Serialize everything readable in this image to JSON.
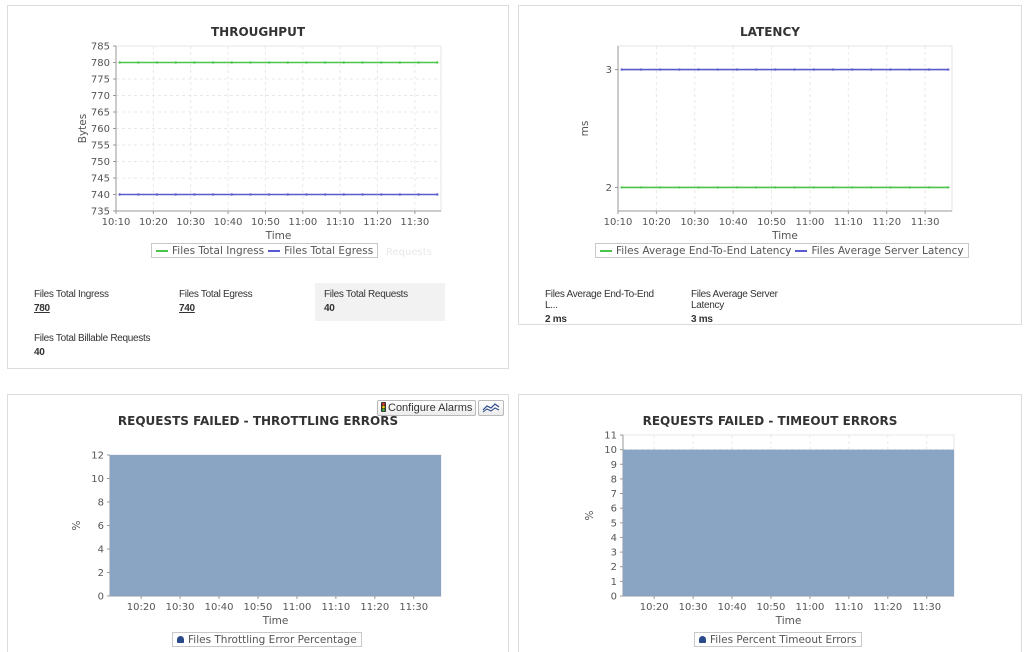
{
  "throughput": {
    "title": "THROUGHPUT",
    "metrics": [
      {
        "label": "Files Total Ingress",
        "value": "780"
      },
      {
        "label": "Files Total Egress",
        "value": "740"
      },
      {
        "label": "Files Total Requests",
        "value": "40"
      },
      {
        "label": "Files Total Billable Requests",
        "value": "40"
      }
    ],
    "ghost_text": "Requests"
  },
  "latency": {
    "title": "LATENCY",
    "metrics": [
      {
        "label": "Files Average End-To-End L...",
        "value": "2 ms"
      },
      {
        "label": "Files Average Server Latency",
        "value": "3 ms"
      }
    ]
  },
  "throttling": {
    "title": "REQUESTS FAILED - THROTTLING ERRORS",
    "configure_alarms_label": "Configure Alarms",
    "chart_toggle_icon": "chart-type-icon",
    "alarm_icon": "traffic-light-icon"
  },
  "timeout": {
    "title": "REQUESTS FAILED - TIMEOUT ERRORS"
  },
  "chart_data": [
    {
      "id": "throughput",
      "type": "line",
      "title": "THROUGHPUT",
      "xlabel": "Time",
      "ylabel": "Bytes",
      "xlim": [
        "10:10",
        "11:37"
      ],
      "ylim": [
        735,
        785
      ],
      "yticks": [
        735,
        740,
        745,
        750,
        755,
        760,
        765,
        770,
        775,
        780,
        785
      ],
      "xticks": [
        "10:10",
        "10:20",
        "10:30",
        "10:40",
        "10:50",
        "11:00",
        "11:10",
        "11:20",
        "11:30"
      ],
      "grid": true,
      "legend": "bottom",
      "series": [
        {
          "name": "Files Total Ingress",
          "color": "#4cc44c",
          "x": [
            "10:11",
            "10:16",
            "10:21",
            "10:26",
            "10:31",
            "10:36",
            "10:41",
            "10:46",
            "10:51",
            "10:56",
            "11:01",
            "11:06",
            "11:11",
            "11:16",
            "11:21",
            "11:26",
            "11:31",
            "11:36"
          ],
          "values": [
            780,
            780,
            780,
            780,
            780,
            780,
            780,
            780,
            780,
            780,
            780,
            780,
            780,
            780,
            780,
            780,
            780,
            780
          ]
        },
        {
          "name": "Files Total Egress",
          "color": "#5a5ad0",
          "x": [
            "10:11",
            "10:16",
            "10:21",
            "10:26",
            "10:31",
            "10:36",
            "10:41",
            "10:46",
            "10:51",
            "10:56",
            "11:01",
            "11:06",
            "11:11",
            "11:16",
            "11:21",
            "11:26",
            "11:31",
            "11:36"
          ],
          "values": [
            740,
            740,
            740,
            740,
            740,
            740,
            740,
            740,
            740,
            740,
            740,
            740,
            740,
            740,
            740,
            740,
            740,
            740
          ]
        }
      ]
    },
    {
      "id": "latency",
      "type": "line",
      "title": "LATENCY",
      "xlabel": "Time",
      "ylabel": "ms",
      "xlim": [
        "10:10",
        "11:37"
      ],
      "ylim": [
        1.8,
        3.2
      ],
      "yticks": [
        2,
        3
      ],
      "xticks": [
        "10:10",
        "10:20",
        "10:30",
        "10:40",
        "10:50",
        "11:00",
        "11:10",
        "11:20",
        "11:30"
      ],
      "grid": true,
      "legend": "bottom",
      "series": [
        {
          "name": "Files Average End-To-End Latency",
          "color": "#4cc44c",
          "x": [
            "10:11",
            "10:16",
            "10:21",
            "10:26",
            "10:31",
            "10:36",
            "10:41",
            "10:46",
            "10:51",
            "10:56",
            "11:01",
            "11:06",
            "11:11",
            "11:16",
            "11:21",
            "11:26",
            "11:31",
            "11:36"
          ],
          "values": [
            2,
            2,
            2,
            2,
            2,
            2,
            2,
            2,
            2,
            2,
            2,
            2,
            2,
            2,
            2,
            2,
            2,
            2
          ]
        },
        {
          "name": "Files Average Server Latency",
          "color": "#5a5ad0",
          "x": [
            "10:11",
            "10:16",
            "10:21",
            "10:26",
            "10:31",
            "10:36",
            "10:41",
            "10:46",
            "10:51",
            "10:56",
            "11:01",
            "11:06",
            "11:11",
            "11:16",
            "11:21",
            "11:26",
            "11:31",
            "11:36"
          ],
          "values": [
            3,
            3,
            3,
            3,
            3,
            3,
            3,
            3,
            3,
            3,
            3,
            3,
            3,
            3,
            3,
            3,
            3,
            3
          ]
        }
      ]
    },
    {
      "id": "throttling",
      "type": "area",
      "title": "REQUESTS FAILED - THROTTLING ERRORS",
      "xlabel": "Time",
      "ylabel": "%",
      "xlim": [
        "10:12",
        "11:37"
      ],
      "ylim": [
        0,
        12
      ],
      "yticks": [
        0,
        2,
        4,
        6,
        8,
        10,
        12
      ],
      "xticks": [
        "10:20",
        "10:30",
        "10:40",
        "10:50",
        "11:00",
        "11:10",
        "11:20",
        "11:30"
      ],
      "grid": false,
      "legend": "bottom",
      "series": [
        {
          "name": "Files Throttling Error Percentage",
          "color": "#8aa4c4",
          "x": [
            "10:12",
            "11:37"
          ],
          "values": [
            12,
            12
          ]
        }
      ]
    },
    {
      "id": "timeout",
      "type": "area",
      "title": "REQUESTS FAILED - TIMEOUT ERRORS",
      "xlabel": "Time",
      "ylabel": "%",
      "xlim": [
        "10:12",
        "11:37"
      ],
      "ylim": [
        0,
        11
      ],
      "yticks": [
        0,
        1,
        2,
        3,
        4,
        5,
        6,
        7,
        8,
        9,
        10,
        11
      ],
      "xticks": [
        "10:20",
        "10:30",
        "10:40",
        "10:50",
        "11:00",
        "11:10",
        "11:20",
        "11:30"
      ],
      "grid": true,
      "legend": "bottom",
      "series": [
        {
          "name": "Files Percent Timeout Errors",
          "color": "#8aa4c4",
          "x": [
            "10:12",
            "11:37"
          ],
          "values": [
            10,
            10
          ]
        }
      ]
    }
  ]
}
